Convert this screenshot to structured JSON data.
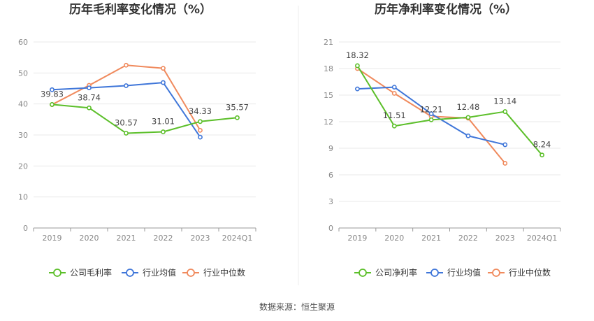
{
  "source_text": "数据来源：恒生聚源",
  "chart_data": [
    {
      "type": "line",
      "title": "历年毛利率变化情况（%）",
      "categories": [
        "2019",
        "2020",
        "2021",
        "2022",
        "2023",
        "2024Q1"
      ],
      "ylim": [
        0,
        60
      ],
      "yticks": [
        0,
        10,
        20,
        30,
        40,
        50,
        60
      ],
      "grid": true,
      "legend_position": "bottom",
      "series": [
        {
          "name": "公司毛利率",
          "color": "#5cbf2a",
          "values": [
            39.83,
            38.74,
            30.57,
            31.01,
            34.33,
            35.57
          ],
          "labels": [
            "39.83",
            "38.74",
            "30.57",
            "31.01",
            "34.33",
            "35.57"
          ]
        },
        {
          "name": "行业均值",
          "color": "#3f76d9",
          "values": [
            44.6,
            45.2,
            45.9,
            46.9,
            29.3,
            null
          ]
        },
        {
          "name": "行业中位数",
          "color": "#f08a5d",
          "values": [
            39.8,
            46.0,
            52.5,
            51.5,
            31.5,
            null
          ]
        }
      ]
    },
    {
      "type": "line",
      "title": "历年净利率变化情况（%）",
      "categories": [
        "2019",
        "2020",
        "2021",
        "2022",
        "2023",
        "2024Q1"
      ],
      "ylim": [
        0,
        21
      ],
      "yticks": [
        0,
        3,
        6,
        9,
        12,
        15,
        18,
        21
      ],
      "grid": true,
      "legend_position": "bottom",
      "series": [
        {
          "name": "公司净利率",
          "color": "#5cbf2a",
          "values": [
            18.32,
            11.51,
            12.21,
            12.48,
            13.14,
            8.24
          ],
          "labels": [
            "18.32",
            "11.51",
            "12.21",
            "12.48",
            "13.14",
            "8.24"
          ]
        },
        {
          "name": "行业均值",
          "color": "#3f76d9",
          "values": [
            15.7,
            15.9,
            12.9,
            10.4,
            9.4,
            null
          ]
        },
        {
          "name": "行业中位数",
          "color": "#f08a5d",
          "values": [
            18.0,
            15.2,
            12.6,
            12.4,
            7.3,
            null
          ]
        }
      ]
    }
  ]
}
